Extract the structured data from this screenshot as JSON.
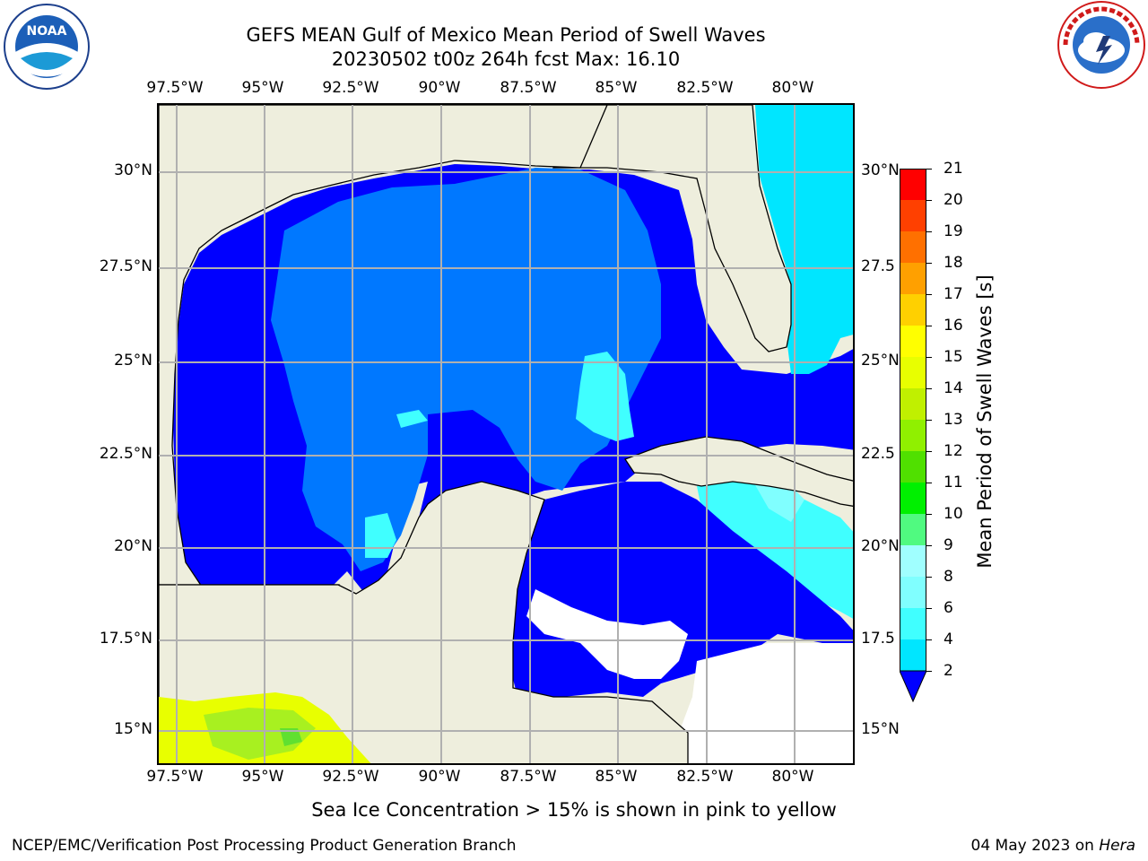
{
  "title": {
    "line1": "GEFS MEAN Gulf of Mexico Mean Period of Swell Waves",
    "line2": "20230502 t00z 264h fcst   Max: 16.10"
  },
  "axes": {
    "lon_labels": [
      "97.5°W",
      "95°W",
      "92.5°W",
      "90°W",
      "87.5°W",
      "85°W",
      "82.5°W",
      "80°W"
    ],
    "lat_labels_left": [
      "30°N",
      "27.5°N",
      "25°N",
      "22.5°N",
      "20°N",
      "17.5°N",
      "15°N"
    ],
    "lat_labels_right": [
      "30°N",
      "27.5",
      "25°N",
      "22.5",
      "20°N",
      "17.5",
      "15°N"
    ]
  },
  "colorbar": {
    "label": "Mean Period of Swell Waves [s]",
    "ticks": [
      "2",
      "4",
      "6",
      "8",
      "9",
      "10",
      "11",
      "12",
      "13",
      "14",
      "15",
      "16",
      "17",
      "18",
      "19",
      "20",
      "21"
    ],
    "colors": [
      "#0078ff",
      "#00e6ff",
      "#40ffff",
      "#80ffff",
      "#a0ffff",
      "#50fa80",
      "#00f000",
      "#50e000",
      "#90f000",
      "#c0f000",
      "#e8ff00",
      "#ffff00",
      "#ffd000",
      "#ffa000",
      "#ff7000",
      "#ff4000",
      "#ff0000"
    ],
    "extend_color": "#0000ff"
  },
  "palette": {
    "land": "#eeeedd",
    "deep": "#0000ff",
    "mid": "#0078ff",
    "cyan": "#00e6ff",
    "light": "#80ffff",
    "ice_yellow": "#e8ff00",
    "ice_green": "#a8f020"
  },
  "footnote": "Sea Ice Concentration > 15% is shown in pink to yellow",
  "credit": "NCEP/EMC/Verification Post Processing Product Generation Branch",
  "date": "04 May 2023 on ",
  "host": "Hera",
  "logos": {
    "left": {
      "icon": "noaa-logo",
      "text": "NOAA"
    },
    "right": {
      "icon": "nws-logo",
      "text": "NATIONAL WEATHER SERVICE"
    }
  }
}
